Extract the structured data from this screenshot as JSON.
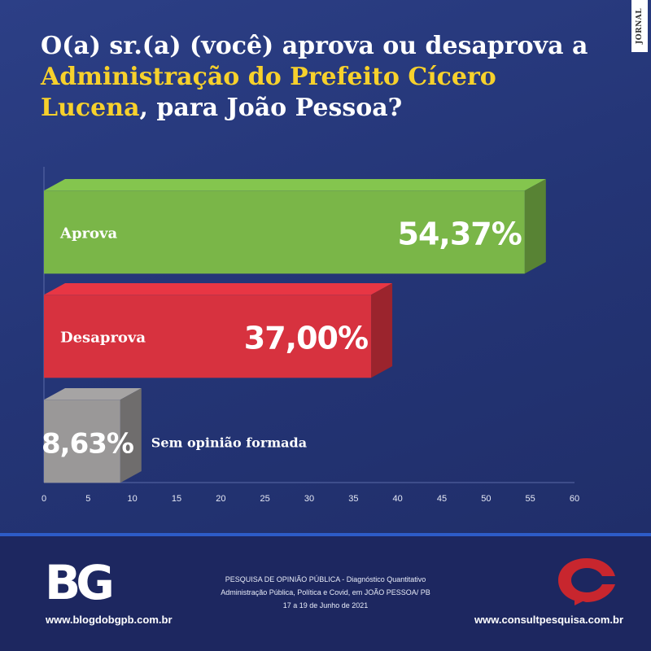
{
  "title": {
    "part1": "O(a) sr.(a) (você) aprova ou desaprova a ",
    "highlight": "Administração do Prefeito Cícero Lucena",
    "part2": ", para João Pessoa?"
  },
  "side_mark": "JORNAL DO",
  "chart_data": {
    "type": "bar",
    "orientation": "horizontal",
    "categories": [
      "Aprova",
      "Desaprova",
      "Sem opinião formada"
    ],
    "values": [
      54.37,
      37.0,
      8.63
    ],
    "value_labels": [
      "54,37%",
      "37,00%",
      "8,63%"
    ],
    "colors": [
      "#7ab648",
      "#d7323f",
      "#9a9898"
    ],
    "xlim": [
      0,
      60
    ],
    "xticks": [
      "0",
      "5",
      "10",
      "15",
      "20",
      "25",
      "30",
      "35",
      "40",
      "45",
      "50",
      "55",
      "60"
    ],
    "title": "",
    "xlabel": "",
    "ylabel": ""
  },
  "footer": {
    "logo_left": "BG",
    "site_left": "www.blogdobgpb.com.br",
    "site_right": "www.consultpesquisa.com.br",
    "info_lines": [
      "PESQUISA DE OPINIÃO PÚBLICA - Diagnóstico Quantitativo",
      "Administração Pública, Política e Covid, em JOÃO PESSOA/ PB",
      "17 a 19 de Junho de 2021"
    ],
    "colors": {
      "accent_line": "#2d5cc8",
      "logo_right": "#c8262e"
    }
  }
}
